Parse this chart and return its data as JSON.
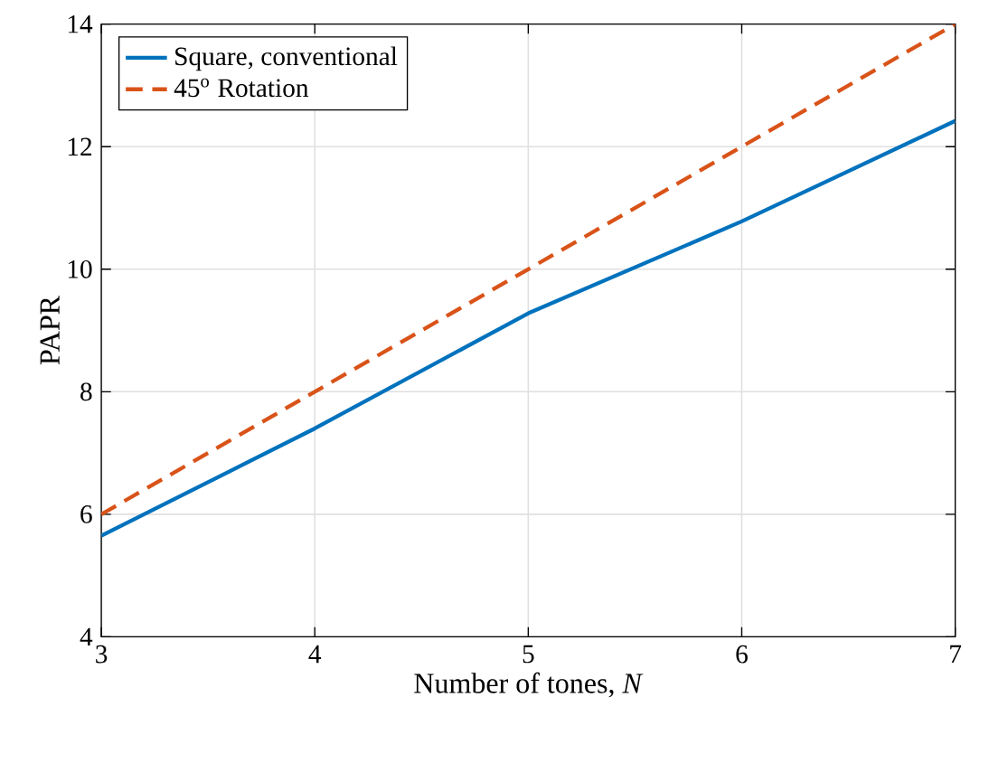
{
  "chart_data": {
    "type": "line",
    "xlabel": "Number of tones, *N*",
    "ylabel": "PAPR",
    "x": [
      3,
      4,
      5,
      6,
      7
    ],
    "series": [
      {
        "name": "Square, conventional",
        "color": "#0072bd",
        "values": [
          5.65,
          7.4,
          9.28,
          10.78,
          12.42
        ],
        "line_style": "solid"
      },
      {
        "name": "45$^{o}$ Rotation",
        "color": "#d95319",
        "values": [
          6,
          8,
          10,
          12,
          14
        ],
        "line_style": "dashed"
      }
    ],
    "xlim": [
      3,
      7
    ],
    "ylim": [
      4,
      14
    ],
    "xticks": [
      3,
      4,
      5,
      6,
      7
    ],
    "yticks": [
      4,
      6,
      8,
      10,
      12,
      14
    ],
    "grid": true,
    "legend": "top left"
  }
}
